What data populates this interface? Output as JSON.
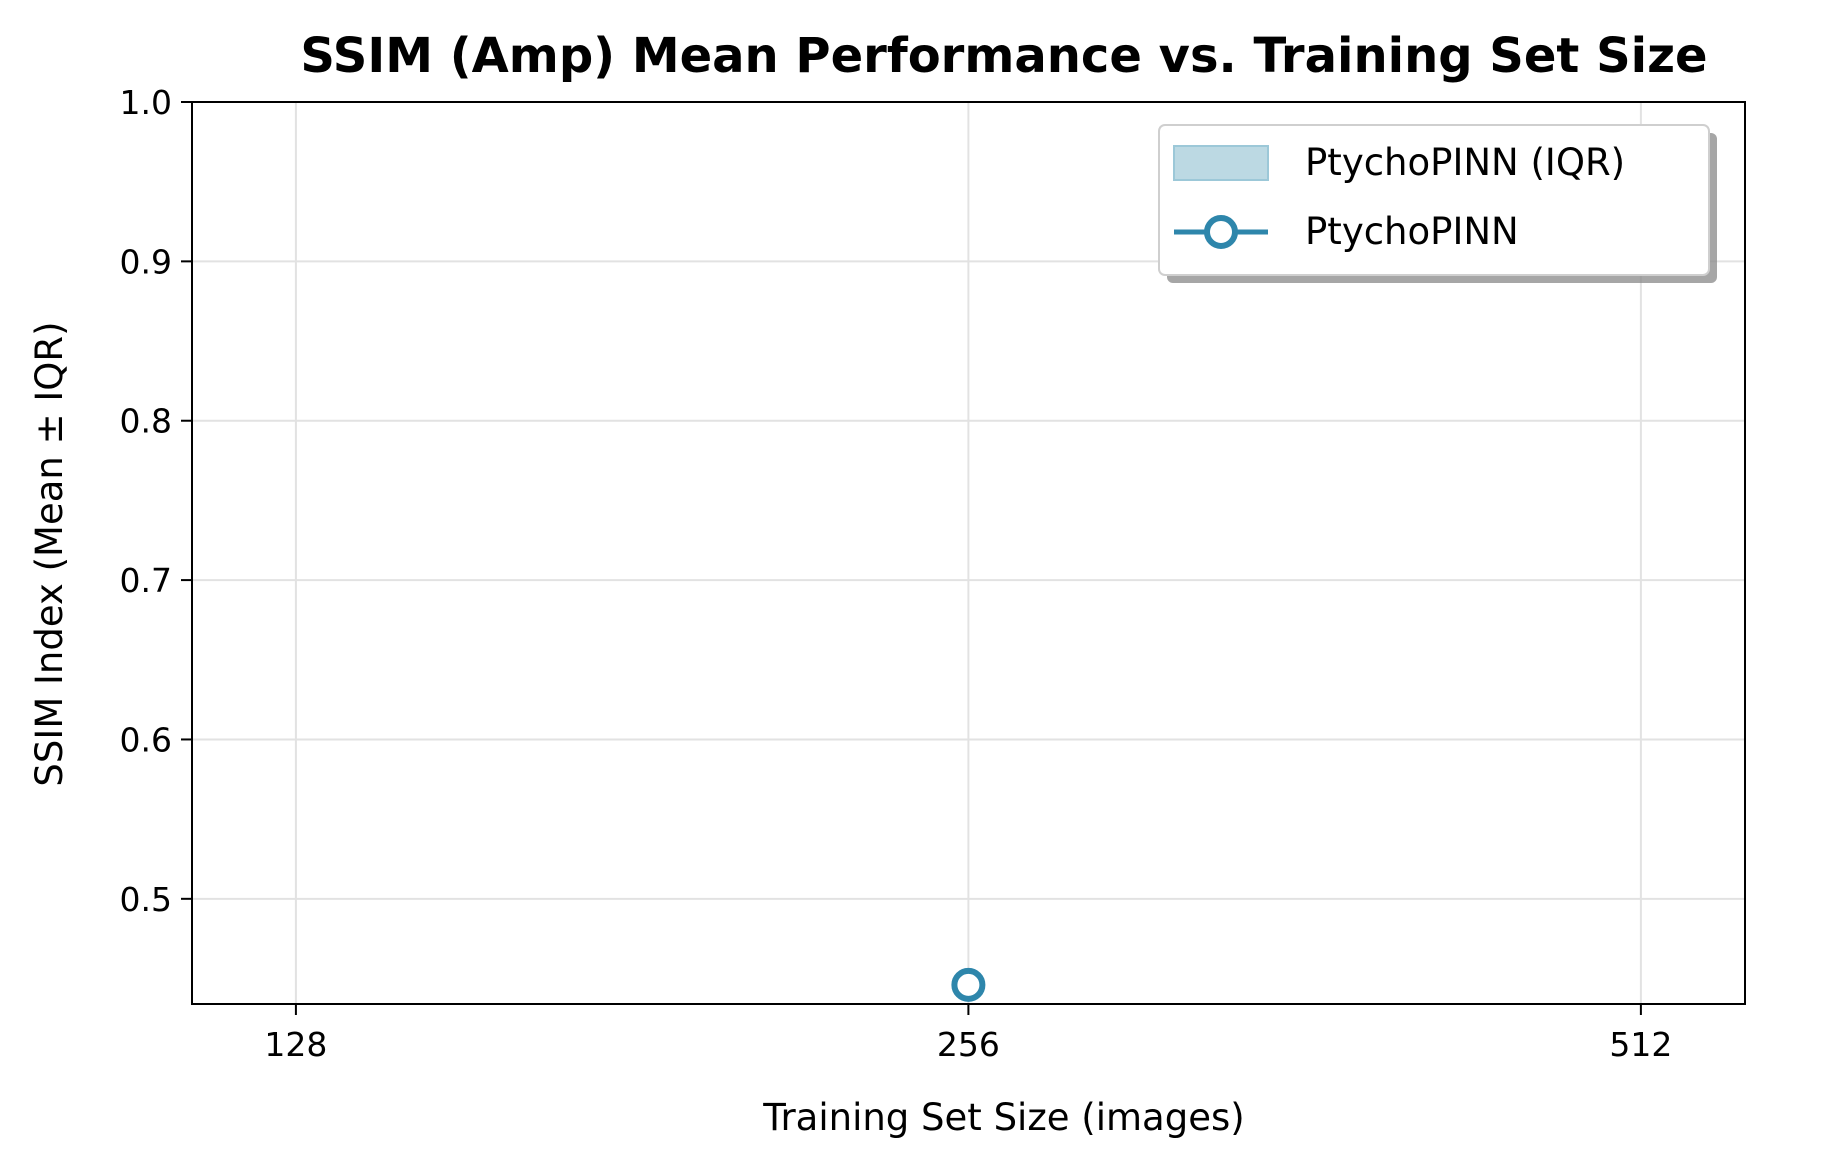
{
  "chart_data": {
    "type": "line",
    "title": "SSIM (Amp) Mean Performance vs. Training Set Size",
    "xlabel": "Training Set Size (images)",
    "ylabel": "SSIM Index (Mean ± IQR)",
    "x_scale": "log2",
    "x_ticks": [
      128,
      256,
      512
    ],
    "x_tick_labels": [
      "128",
      "256",
      "512"
    ],
    "xlim": [
      115,
      570
    ],
    "ylim": [
      0.434,
      1.0
    ],
    "y_ticks": [
      0.5,
      0.6,
      0.7,
      0.8,
      0.9,
      1.0
    ],
    "y_tick_labels": [
      "0.5",
      "0.6",
      "0.7",
      "0.8",
      "0.9",
      "1.0"
    ],
    "grid": true,
    "legend_position": "top-right",
    "colors": {
      "line": "#2e86ab",
      "iqr_fill": "#bcd9e3",
      "iqr_edge": "#9cc8d8",
      "grid": "#e2e2e2"
    },
    "series": [
      {
        "name": "PtychoPINN",
        "legend_label": "PtychoPINN",
        "marker": "open-circle",
        "x": [
          256
        ],
        "y": [
          0.446
        ]
      }
    ],
    "bands": [
      {
        "name": "PtychoPINN (IQR)",
        "legend_label": "PtychoPINN (IQR)",
        "x": [
          256
        ],
        "y_low": [
          0.446
        ],
        "y_high": [
          0.446
        ]
      }
    ]
  }
}
